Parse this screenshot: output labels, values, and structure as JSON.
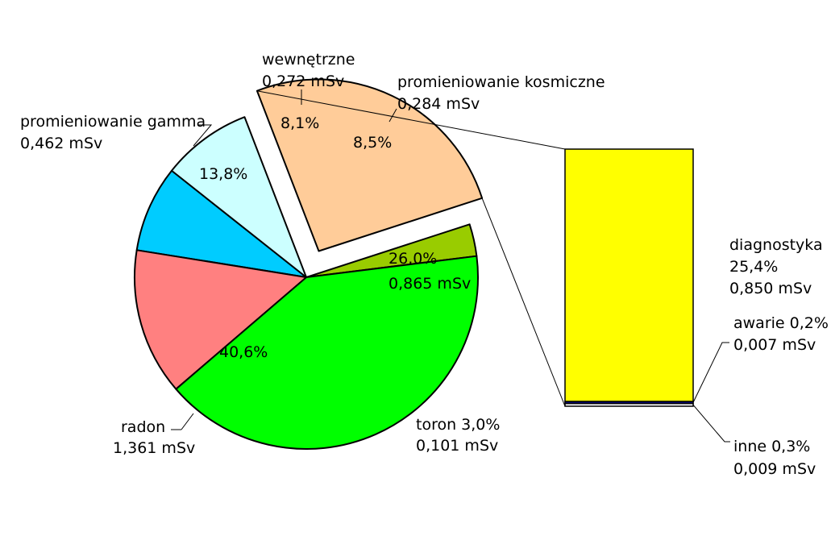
{
  "chart_data": {
    "type": "pie",
    "subtype": "bar-of-pie",
    "colors": {
      "wewnetrzne": "#00CCFF",
      "kosmiczne": "#CCFFFF",
      "medyczne": "#FFCC99",
      "toron": "#99CC00",
      "radon": "#00FF00",
      "gamma": "#FF8080",
      "diagnostyka": "#FFFF00",
      "awarie": "#000080",
      "inne": "#FFFFFF",
      "outline": "#000000"
    },
    "slices": [
      {
        "key": "wewnetrzne",
        "name": "wewnętrzne",
        "value": 0.272,
        "dose": "0,272 mSv",
        "percent": "8,1%"
      },
      {
        "key": "kosmiczne",
        "name": "promieniowanie kosmiczne",
        "value": 0.284,
        "dose": "0,284 mSv",
        "percent": "8,5%"
      },
      {
        "key": "medyczne",
        "name": "",
        "value": 0.865,
        "dose": "0,865 mSv",
        "percent": "26,0%",
        "exploded": true
      },
      {
        "key": "toron",
        "name": "toron",
        "value": 0.101,
        "dose": "0,101 mSv",
        "percent": "3,0%"
      },
      {
        "key": "radon",
        "name": "radon",
        "value": 1.361,
        "dose": "1,361 mSv",
        "percent": "40,6%"
      },
      {
        "key": "gamma",
        "name": "promieniowanie gamma",
        "value": 0.462,
        "dose": "0,462 mSv",
        "percent": "13,8%"
      }
    ],
    "bar": [
      {
        "key": "diagnostyka",
        "name": "diagnostyka",
        "value": 0.85,
        "dose": "0,850 mSv",
        "percent": "25,4%"
      },
      {
        "key": "awarie",
        "name": "awarie",
        "value": 0.007,
        "dose": "0,007 mSv",
        "percent": "0,2%"
      },
      {
        "key": "inne",
        "name": "inne",
        "value": 0.009,
        "dose": "0,009 mSv",
        "percent": "0,3%"
      }
    ],
    "labels": {
      "wewnetrzne_name": "wewnętrzne",
      "wewnetrzne_dose": "0,272 mSv",
      "wewnetrzne_pct": "8,1%",
      "kosmiczne_name": "promieniowanie kosmiczne",
      "kosmiczne_dose": "0,284 mSv",
      "kosmiczne_pct": "8,5%",
      "gamma_name": "promieniowanie gamma",
      "gamma_dose": "0,462 mSv",
      "gamma_pct": "13,8%",
      "radon_name": "radon",
      "radon_dose": "1,361 mSv",
      "radon_pct": "40,6%",
      "toron_line1": "toron 3,0%",
      "toron_dose": "0,101 mSv",
      "medyczne_pct": "26,0%",
      "medyczne_dose": "0,865 mSv",
      "diagnostyka_name": "diagnostyka",
      "diagnostyka_pct": "25,4%",
      "diagnostyka_dose": "0,850 mSv",
      "awarie_line1": "awarie 0,2%",
      "awarie_dose": "0,007 mSv",
      "inne_line1": "inne 0,3%",
      "inne_dose": "0,009 mSv"
    },
    "legend": "none",
    "grid": false
  }
}
